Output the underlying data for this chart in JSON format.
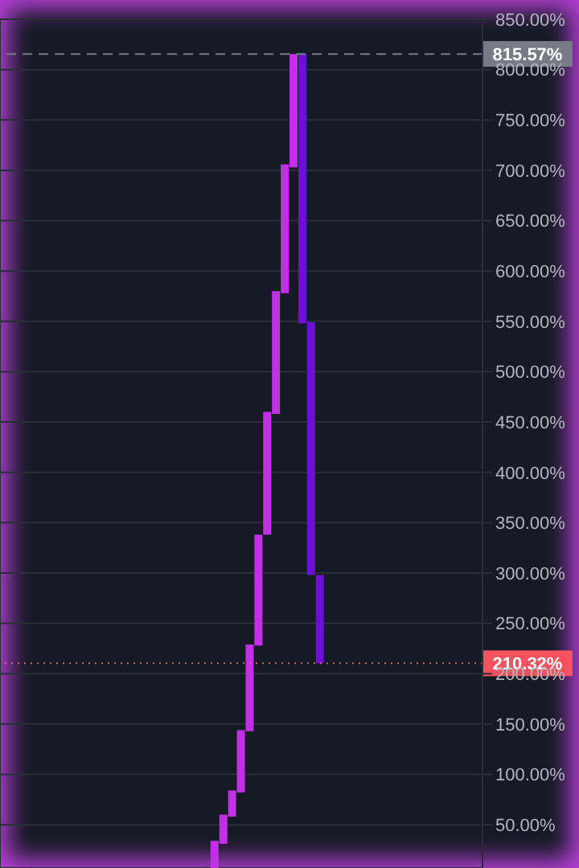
{
  "chart_data": {
    "type": "bar",
    "categories": [
      null,
      null,
      null,
      null,
      null,
      null,
      null,
      null,
      null,
      null,
      null,
      null,
      null,
      null,
      null,
      null,
      null,
      null,
      null,
      null,
      null,
      null,
      null,
      null,
      null,
      null,
      null,
      null,
      null,
      null,
      null,
      null,
      null,
      null,
      null,
      null,
      null,
      null,
      null,
      null,
      null,
      null,
      null,
      null,
      null,
      null,
      null,
      null,
      null,
      null,
      null,
      null,
      null,
      null,
      null
    ],
    "values": [
      null,
      null,
      null,
      null,
      null,
      null,
      null,
      null,
      null,
      null,
      null,
      null,
      null,
      null,
      null,
      null,
      null,
      null,
      null,
      null,
      null,
      null,
      null,
      null,
      27,
      29,
      26,
      62,
      86,
      110,
      122,
      122,
      128,
      112.57,
      267.57,
      251,
      87.68,
      null,
      null,
      null,
      null,
      null,
      null,
      null,
      null,
      null,
      null,
      null,
      null,
      null,
      null,
      null,
      null,
      null,
      null
    ],
    "base": [
      null,
      null,
      null,
      null,
      null,
      null,
      null,
      null,
      null,
      null,
      null,
      null,
      null,
      null,
      null,
      null,
      null,
      null,
      null,
      null,
      null,
      null,
      null,
      null,
      7,
      31,
      58,
      82,
      143,
      228,
      338,
      458,
      578,
      703,
      548,
      298,
      210.32,
      null,
      null,
      null,
      null,
      null,
      null,
      null,
      null,
      null,
      null,
      null,
      null,
      null,
      null,
      null,
      null,
      null,
      null
    ],
    "colors": [
      null,
      null,
      null,
      null,
      null,
      null,
      null,
      null,
      null,
      null,
      null,
      null,
      null,
      null,
      null,
      null,
      null,
      null,
      null,
      null,
      null,
      null,
      null,
      null,
      "#c42ee8",
      "#c42ee8",
      "#c42ee8",
      "#c42ee8",
      "#c42ee8",
      "#c42ee8",
      "#c42ee8",
      "#c42ee8",
      "#c42ee8",
      "#c42ee8",
      "#6e0fd8",
      "#6e0fd8",
      "#6e0fd8",
      null,
      null,
      null,
      null,
      null,
      null,
      null,
      null,
      null,
      null,
      null,
      null,
      null,
      null,
      null,
      null,
      null,
      null
    ],
    "ylim": [
      7,
      850
    ],
    "yticks": [
      {
        "value": 50,
        "label": "50.00%"
      },
      {
        "value": 100,
        "label": "100.00%"
      },
      {
        "value": 150,
        "label": "150.00%"
      },
      {
        "value": 200,
        "label": "200.00%"
      },
      {
        "value": 250,
        "label": "250.00%"
      },
      {
        "value": 300,
        "label": "300.00%"
      },
      {
        "value": 350,
        "label": "350.00%"
      },
      {
        "value": 400,
        "label": "400.00%"
      },
      {
        "value": 450,
        "label": "450.00%"
      },
      {
        "value": 500,
        "label": "500.00%"
      },
      {
        "value": 550,
        "label": "550.00%"
      },
      {
        "value": 600,
        "label": "600.00%"
      },
      {
        "value": 650,
        "label": "650.00%"
      },
      {
        "value": 700,
        "label": "700.00%"
      },
      {
        "value": 750,
        "label": "750.00%"
      },
      {
        "value": 800,
        "label": "800.00%"
      },
      {
        "value": 850,
        "label": "850.00%"
      }
    ],
    "ref_lines": [
      {
        "axis": "y",
        "value": 815.57,
        "label": "815.57%",
        "color": "#787b86",
        "line_style": "dashed"
      },
      {
        "axis": "y",
        "value": 210.32,
        "label": "210.32%",
        "color": "#f7525f",
        "line_style": "dotted"
      }
    ],
    "tick_labels": "y",
    "grid": true
  }
}
